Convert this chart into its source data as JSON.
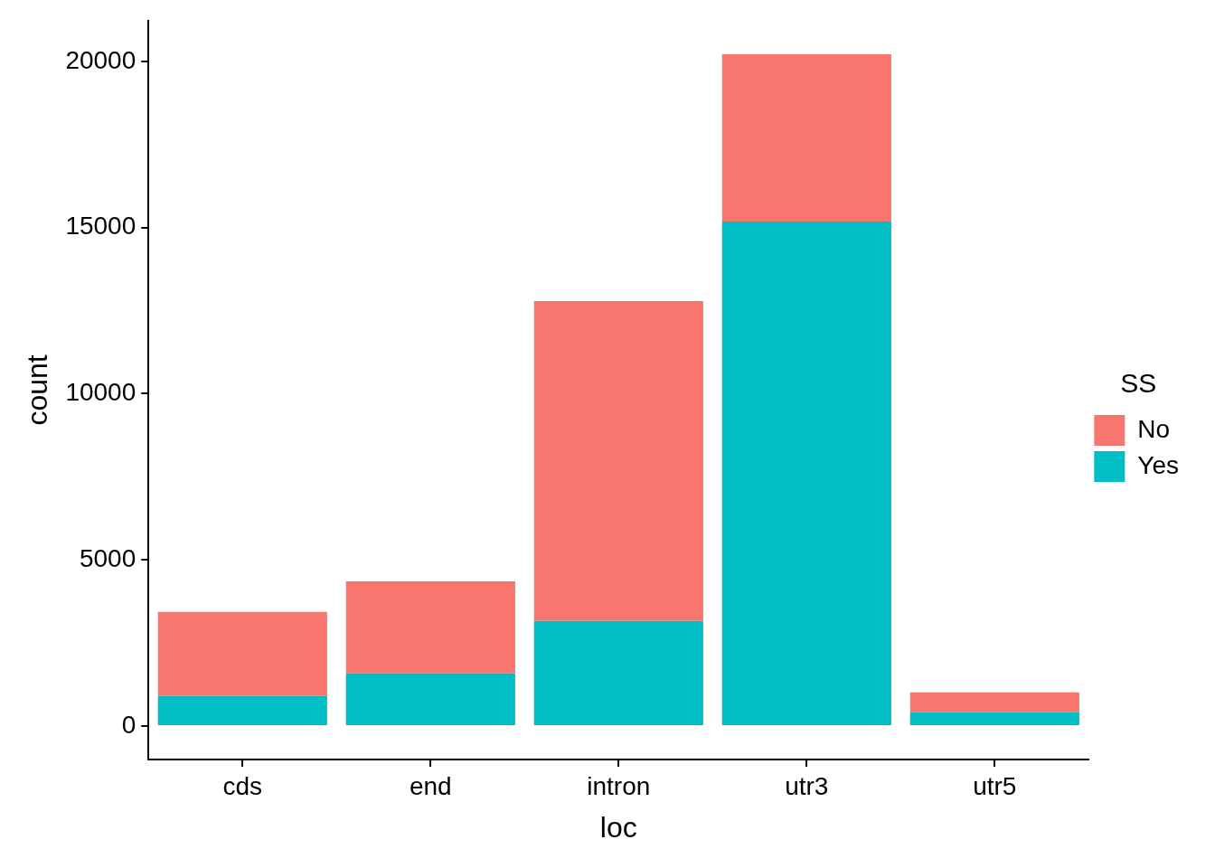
{
  "chart_data": {
    "type": "bar",
    "stacked": true,
    "xlabel": "loc",
    "ylabel": "count",
    "legend_title": "SS",
    "legend": "right",
    "grid": false,
    "categories": [
      "cds",
      "end",
      "intron",
      "utr3",
      "utr5"
    ],
    "series": [
      {
        "name": "Yes",
        "color": "#00bfc4",
        "values": [
          900,
          1580,
          3160,
          15180,
          410
        ]
      },
      {
        "name": "No",
        "color": "#f8766d",
        "values": [
          2530,
          2770,
          9630,
          5040,
          600
        ]
      }
    ],
    "ylim": [
      -1010,
      21230
    ],
    "yticks": [
      0,
      5000,
      10000,
      15000,
      20000
    ]
  }
}
